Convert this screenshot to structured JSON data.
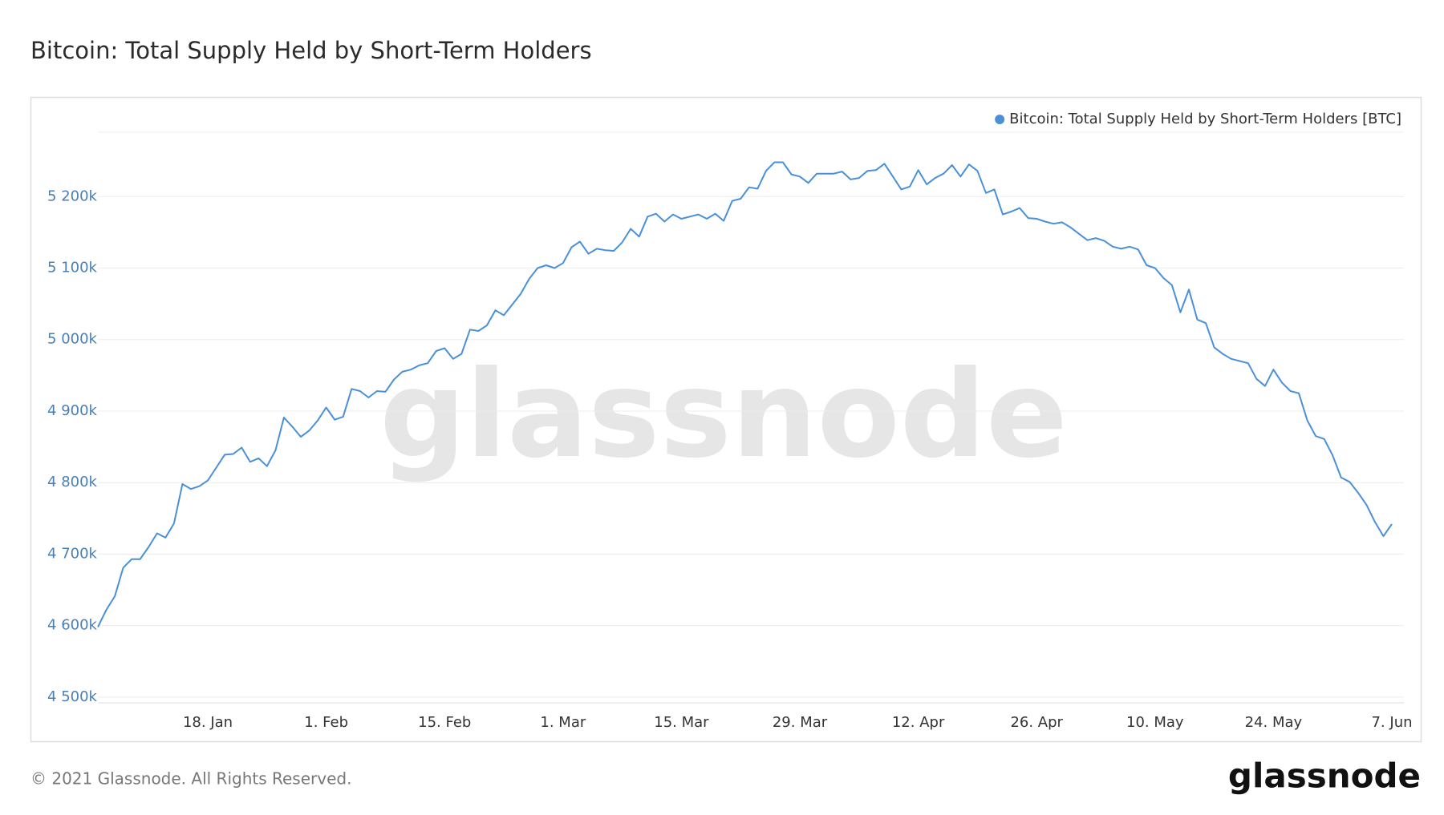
{
  "chart_data": {
    "type": "line",
    "title": "Bitcoin: Total Supply Held by Short-Term Holders",
    "watermark": "glassnode",
    "footer": "© 2021 Glassnode. All Rights Reserved.",
    "logo": "glassnode",
    "legend_position": "top-right",
    "grid": true,
    "categories": [
      null,
      null,
      null,
      null,
      null,
      null,
      null,
      null,
      null,
      null,
      null,
      null,
      null,
      "18. Jan",
      null,
      null,
      null,
      null,
      null,
      null,
      null,
      null,
      null,
      null,
      null,
      null,
      null,
      "1. Feb",
      null,
      null,
      null,
      null,
      null,
      null,
      null,
      null,
      null,
      null,
      null,
      null,
      null,
      "15. Feb",
      null,
      null,
      null,
      null,
      null,
      null,
      null,
      null,
      null,
      null,
      null,
      null,
      null,
      "1. Mar",
      null,
      null,
      null,
      null,
      null,
      null,
      null,
      null,
      null,
      null,
      null,
      null,
      null,
      "15. Mar",
      null,
      null,
      null,
      null,
      null,
      null,
      null,
      null,
      null,
      null,
      null,
      null,
      null,
      "29. Mar",
      null,
      null,
      null,
      null,
      null,
      null,
      null,
      null,
      null,
      null,
      null,
      null,
      null,
      "12. Apr",
      null,
      null,
      null,
      null,
      null,
      null,
      null,
      null,
      null,
      null,
      null,
      null,
      null,
      "26. Apr",
      null,
      null,
      null,
      null,
      null,
      null,
      null,
      null,
      null,
      null,
      null,
      null,
      null,
      "10. May",
      null,
      null,
      null,
      null,
      null,
      null,
      null,
      null,
      null,
      null,
      null,
      null,
      null,
      "24. May",
      null,
      null,
      null,
      null,
      null,
      null,
      null,
      null,
      null,
      null,
      null,
      null,
      null,
      "7. Jun"
    ],
    "series": [
      {
        "name": "Bitcoin: Total Supply Held by Short-Term Holders [BTC]",
        "color": "#4a90d9",
        "values": [
          4598000,
          4622000,
          4641000,
          4681000,
          4693000,
          4693000,
          4710000,
          4729000,
          4723000,
          4743000,
          4798000,
          4791000,
          4795000,
          4803000,
          4821000,
          4839000,
          4840000,
          4849000,
          4829000,
          4834000,
          4823000,
          4845000,
          4891000,
          4878000,
          4864000,
          4873000,
          4887000,
          4905000,
          4888000,
          4892000,
          4931000,
          4928000,
          4919000,
          4928000,
          4927000,
          4944000,
          4955000,
          4958000,
          4964000,
          4967000,
          4984000,
          4988000,
          4973000,
          4980000,
          5014000,
          5012000,
          5020000,
          5041000,
          5034000,
          5049000,
          5064000,
          5085000,
          5100000,
          5104000,
          5100000,
          5107000,
          5129000,
          5137000,
          5120000,
          5127000,
          5125000,
          5124000,
          5136000,
          5155000,
          5144000,
          5172000,
          5176000,
          5165000,
          5175000,
          5169000,
          5172000,
          5175000,
          5169000,
          5176000,
          5166000,
          5194000,
          5197000,
          5213000,
          5211000,
          5236000,
          5248000,
          5248000,
          5231000,
          5228000,
          5219000,
          5232000,
          5232000,
          5232000,
          5235000,
          5224000,
          5226000,
          5236000,
          5237000,
          5246000,
          5228000,
          5210000,
          5214000,
          5237000,
          5217000,
          5226000,
          5232000,
          5244000,
          5228000,
          5245000,
          5236000,
          5205000,
          5210000,
          5175000,
          5179000,
          5184000,
          5170000,
          5169000,
          5165000,
          5162000,
          5164000,
          5157000,
          5148000,
          5139000,
          5142000,
          5138000,
          5130000,
          5127000,
          5130000,
          5126000,
          5104000,
          5100000,
          5086000,
          5076000,
          5038000,
          5070000,
          5028000,
          5023000,
          4989000,
          4980000,
          4973000,
          4970000,
          4967000,
          4945000,
          4935000,
          4958000,
          4940000,
          4928000,
          4925000,
          4887000,
          4865000,
          4861000,
          4838000,
          4807000,
          4801000,
          4786000,
          4769000,
          4745000,
          4725000,
          4742000
        ]
      }
    ],
    "ylim": [
      4492000,
      5290000
    ],
    "yticks": [
      {
        "value": 4500000,
        "label": "4 500k"
      },
      {
        "value": 4600000,
        "label": "4 600k"
      },
      {
        "value": 4700000,
        "label": "4 700k"
      },
      {
        "value": 4800000,
        "label": "4 800k"
      },
      {
        "value": 4900000,
        "label": "4 900k"
      },
      {
        "value": 5000000,
        "label": "5 000k"
      },
      {
        "value": 5100000,
        "label": "5 100k"
      },
      {
        "value": 5200000,
        "label": "5 200k"
      }
    ]
  }
}
